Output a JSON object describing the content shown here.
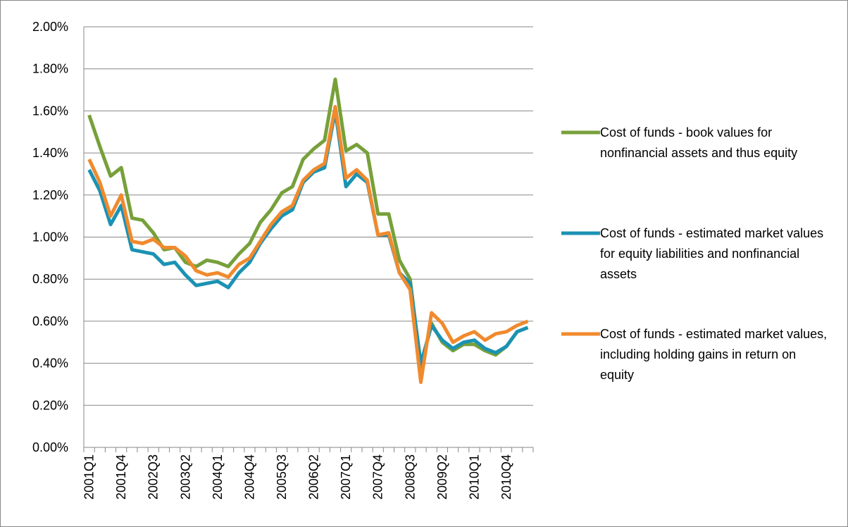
{
  "chart_data": {
    "type": "line",
    "categories": [
      "2001Q1",
      null,
      null,
      "2001Q4",
      null,
      null,
      "2002Q3",
      null,
      null,
      "2003Q2",
      null,
      null,
      "2004Q1",
      null,
      null,
      "2004Q4",
      null,
      null,
      "2005Q3",
      null,
      null,
      "2006Q2",
      null,
      null,
      "2007Q1",
      null,
      null,
      "2007Q4",
      null,
      null,
      "2008Q3",
      null,
      null,
      "2009Q2",
      null,
      null,
      "2010Q1",
      null,
      null,
      "2010Q4",
      null,
      null
    ],
    "series": [
      {
        "name": "Cost of funds - book values for nonfinancial assets and thus equity",
        "color": "#77a03a",
        "values": [
          1.58,
          1.43,
          1.29,
          1.33,
          1.09,
          1.08,
          1.02,
          0.94,
          0.95,
          0.88,
          0.86,
          0.89,
          0.88,
          0.86,
          0.92,
          0.97,
          1.07,
          1.13,
          1.21,
          1.24,
          1.37,
          1.42,
          1.46,
          1.75,
          1.41,
          1.44,
          1.4,
          1.11,
          1.11,
          0.89,
          0.8,
          0.38,
          0.59,
          0.5,
          0.46,
          0.49,
          0.49,
          0.46,
          0.44,
          0.48,
          0.55,
          0.57
        ]
      },
      {
        "name": "Cost of funds - estimated market values for equity liabilities and nonfinancial assets",
        "color": "#1b92b3",
        "values": [
          1.32,
          1.22,
          1.06,
          1.15,
          0.94,
          0.93,
          0.92,
          0.87,
          0.88,
          0.82,
          0.77,
          0.78,
          0.79,
          0.76,
          0.83,
          0.88,
          0.97,
          1.04,
          1.1,
          1.13,
          1.26,
          1.31,
          1.33,
          1.6,
          1.24,
          1.3,
          1.26,
          1.01,
          1.01,
          0.83,
          0.78,
          0.4,
          0.58,
          0.51,
          0.47,
          0.5,
          0.51,
          0.47,
          0.45,
          0.48,
          0.55,
          0.57
        ]
      },
      {
        "name": "Cost of funds - estimated market values, including holding gains in return on equity",
        "color": "#f08a2e",
        "values": [
          1.37,
          1.26,
          1.1,
          1.2,
          0.98,
          0.97,
          0.99,
          0.95,
          0.95,
          0.91,
          0.84,
          0.82,
          0.83,
          0.81,
          0.87,
          0.9,
          0.98,
          1.06,
          1.12,
          1.15,
          1.27,
          1.32,
          1.35,
          1.62,
          1.28,
          1.32,
          1.27,
          1.01,
          1.02,
          0.83,
          0.75,
          0.31,
          0.64,
          0.59,
          0.5,
          0.53,
          0.55,
          0.51,
          0.54,
          0.55,
          0.58,
          0.6
        ]
      }
    ],
    "ylim": [
      0,
      2
    ],
    "yticks": [
      {
        "value": 0,
        "label": "0.00%"
      },
      {
        "value": 0.2,
        "label": "0.20%"
      },
      {
        "value": 0.4,
        "label": "0.40%"
      },
      {
        "value": 0.6,
        "label": "0.60%"
      },
      {
        "value": 0.8,
        "label": "0.80%"
      },
      {
        "value": 1.0,
        "label": "1.00%"
      },
      {
        "value": 1.2,
        "label": "1.20%"
      },
      {
        "value": 1.4,
        "label": "1.40%"
      },
      {
        "value": 1.6,
        "label": "1.60%"
      },
      {
        "value": 1.8,
        "label": "1.80%"
      },
      {
        "value": 2.0,
        "label": "2.00%"
      }
    ],
    "grid": true,
    "legend": "right"
  }
}
